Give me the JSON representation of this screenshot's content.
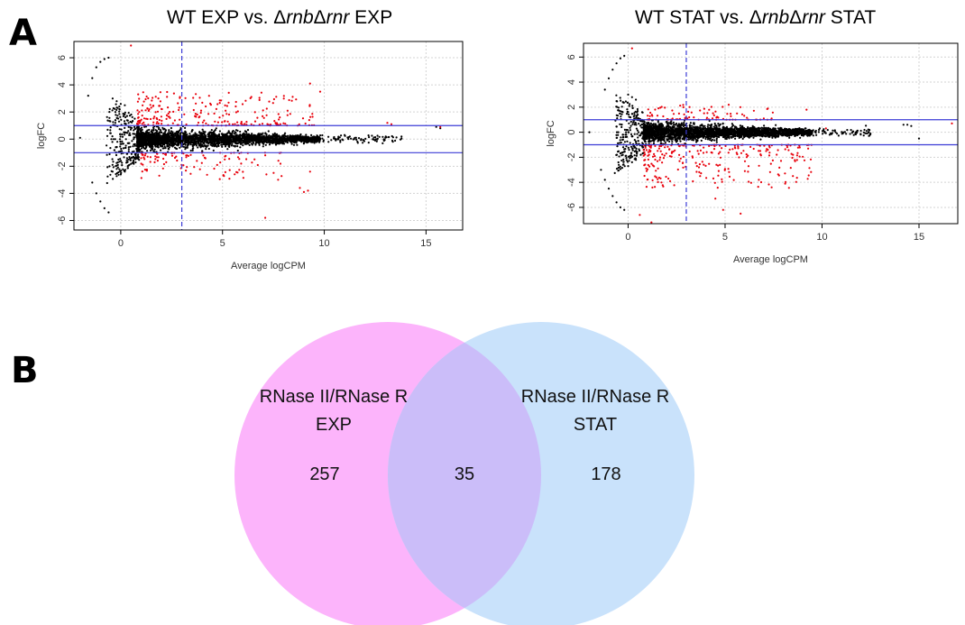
{
  "panels": {
    "a_label": "A",
    "b_label": "B"
  },
  "chart_data": [
    {
      "type": "scatter",
      "title": {
        "prefix": "WT EXP vs. Δ",
        "it1": "rnb",
        "mid": "Δ",
        "it2": "rnr",
        "suffix": " EXP"
      },
      "xlabel": "Average logCPM",
      "ylabel": "logFC",
      "xlim": [
        -2.3,
        16.8
      ],
      "ylim": [
        -6.7,
        7.2
      ],
      "xticks": [
        0,
        5,
        10,
        15
      ],
      "yticks": [
        -6,
        -4,
        -2,
        0,
        2,
        4,
        6
      ],
      "grid": true,
      "hlines": [
        1,
        -1
      ],
      "vline": 3,
      "series": [
        {
          "color": "#000000",
          "cloud": {
            "xmin": 0.8,
            "xmax": 9.8,
            "spread": 0.55
          },
          "tail": {
            "xmin": 9.5,
            "xmax": 13.8,
            "spread": 0.15
          },
          "arc": [
            [
              -1.6,
              3.2
            ],
            [
              -1.4,
              4.5
            ],
            [
              -1.2,
              5.3
            ],
            [
              -1.0,
              5.7
            ],
            [
              -0.8,
              5.9
            ],
            [
              -0.6,
              6.0
            ],
            [
              -1.4,
              -3.2
            ],
            [
              -1.2,
              -4.0
            ],
            [
              -1.0,
              -4.6
            ],
            [
              -0.8,
              -5.1
            ],
            [
              -0.6,
              -5.4
            ]
          ],
          "extra": [
            [
              -0.4,
              3.0
            ],
            [
              -0.2,
              2.8
            ],
            [
              0.0,
              2.6
            ],
            [
              0.2,
              2.5
            ],
            [
              -0.4,
              -2.4
            ],
            [
              -0.2,
              -2.2
            ],
            [
              0.0,
              -2.6
            ],
            [
              0.2,
              -2.4
            ],
            [
              11.0,
              0.3
            ],
            [
              11.5,
              0.1
            ],
            [
              12.5,
              -0.1
            ],
            [
              13.0,
              0.1
            ],
            [
              15.5,
              0.9
            ],
            [
              15.7,
              0.8
            ],
            [
              -2.0,
              0.1
            ]
          ]
        },
        {
          "color": "#e8000b",
          "up": {
            "xmin": 0.8,
            "xmax": 9.5,
            "ymin": 1.0,
            "ymax": 3.5,
            "n": 230
          },
          "down": {
            "xmin": 1.0,
            "xmax": 8.0,
            "ymin": -3.0,
            "ymax": -1.0,
            "n": 110
          },
          "extra": [
            [
              0.5,
              6.9
            ],
            [
              7.1,
              -5.8
            ],
            [
              8.8,
              -3.6
            ],
            [
              9.0,
              -3.9
            ],
            [
              9.2,
              -3.8
            ],
            [
              9.3,
              -2.4
            ],
            [
              13.1,
              1.2
            ],
            [
              13.3,
              1.1
            ],
            [
              15.7,
              0.9
            ],
            [
              9.3,
              4.1
            ],
            [
              9.8,
              3.5
            ]
          ]
        }
      ]
    },
    {
      "type": "scatter",
      "title": {
        "prefix": "WT STAT vs. Δ",
        "it1": "rnb",
        "mid": "Δ",
        "it2": "rnr",
        "suffix": " STAT"
      },
      "xlabel": "Average logCPM",
      "ylabel": "logFC",
      "xlim": [
        -2.3,
        17.0
      ],
      "ylim": [
        -7.3,
        7.1
      ],
      "xticks": [
        0,
        5,
        10,
        15
      ],
      "yticks": [
        -6,
        -4,
        -2,
        0,
        2,
        4,
        6
      ],
      "grid": true,
      "hlines": [
        1,
        -1
      ],
      "vline": 3,
      "series": [
        {
          "color": "#000000",
          "cloud": {
            "xmin": 0.8,
            "xmax": 9.5,
            "spread": 0.55
          },
          "tail": {
            "xmin": 9.0,
            "xmax": 12.5,
            "spread": 0.15
          },
          "arc": [
            [
              -1.2,
              3.4
            ],
            [
              -1.0,
              4.3
            ],
            [
              -0.8,
              5.0
            ],
            [
              -0.6,
              5.5
            ],
            [
              -0.4,
              5.9
            ],
            [
              -0.2,
              6.1
            ],
            [
              -1.4,
              -3.0
            ],
            [
              -1.2,
              -3.8
            ],
            [
              -1.0,
              -4.5
            ],
            [
              -0.8,
              -5.1
            ],
            [
              -0.6,
              -5.6
            ],
            [
              -0.4,
              -6.0
            ],
            [
              -0.2,
              -6.2
            ]
          ],
          "extra": [
            [
              0.0,
              3.0
            ],
            [
              0.2,
              2.8
            ],
            [
              0.4,
              2.6
            ],
            [
              0.0,
              -2.7
            ],
            [
              0.2,
              -2.4
            ],
            [
              0.4,
              -2.2
            ],
            [
              14.2,
              0.6
            ],
            [
              14.4,
              0.6
            ],
            [
              14.6,
              0.5
            ],
            [
              15.0,
              -0.5
            ],
            [
              12.3,
              0.1
            ],
            [
              12.5,
              -0.1
            ],
            [
              -2.0,
              0.0
            ]
          ]
        },
        {
          "color": "#e8000b",
          "up": {
            "xmin": 1.0,
            "xmax": 7.5,
            "ymin": 1.0,
            "ymax": 2.2,
            "n": 90
          },
          "down": {
            "xmin": 0.8,
            "xmax": 9.5,
            "ymin": -4.5,
            "ymax": -1.0,
            "n": 260
          },
          "extra": [
            [
              0.2,
              6.7
            ],
            [
              1.2,
              -7.2
            ],
            [
              4.9,
              -6.2
            ],
            [
              5.8,
              -6.5
            ],
            [
              0.6,
              -6.6
            ],
            [
              4.5,
              -5.3
            ],
            [
              7.4,
              -4.4
            ],
            [
              8.5,
              -3.5
            ],
            [
              9.2,
              1.8
            ],
            [
              16.7,
              0.7
            ],
            [
              10.2,
              0.3
            ]
          ]
        }
      ]
    }
  ],
  "venn": {
    "left": {
      "label_line1": "RNase II/RNase R",
      "label_line2": "EXP",
      "count": "257",
      "color": "#fcb4fb"
    },
    "right": {
      "label_line1": "RNase II/RNase R",
      "label_line2": "STAT",
      "count": "178",
      "color": "#c9e2fb"
    },
    "overlap": {
      "count": "35",
      "color": "#cbbdf9"
    }
  }
}
